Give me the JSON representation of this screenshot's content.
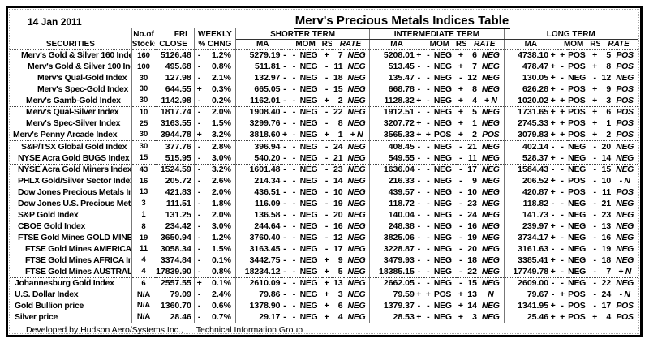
{
  "meta": {
    "date": "14 Jan 2011",
    "title": "Merv's Precious Metals Indices Table",
    "footer_left": "Developed by Hudson Aero/Systems Inc.,",
    "footer_right": "Technical Information Group"
  },
  "colors": {
    "text": "#000000",
    "background": "#ffffff",
    "border": "#000000"
  },
  "header": {
    "securities": "SECURITIES",
    "no_of": "No.of",
    "stocks": "Stocks",
    "fri": "FRI",
    "close": "CLOSE",
    "weekly": "WEEKLY",
    "pct_chng": "% CHNG",
    "shorter": "SHORTER TERM",
    "intermediate": "INTERMEDIATE TERM",
    "longterm": "LONG TERM",
    "ma": "MA",
    "mom": "MOM",
    "rs": "RS",
    "rate": "RATE"
  },
  "rows": [
    {
      "name": "Merv's Gold & Silver 160 Index",
      "indent": 10,
      "stocks": "160",
      "close": "5126.48",
      "wk_sign": "-",
      "wk": "1.2%",
      "divider": false,
      "st": {
        "ma": "5279.19",
        "ma_sign": "-",
        "mom_sign": "-",
        "mom": "NEG",
        "rs_sign": "+",
        "rs": "7",
        "rate": "NEG"
      },
      "it": {
        "ma": "5208.01",
        "ma_sign": "+",
        "mom_sign": "-",
        "mom": "NEG",
        "rs_sign": "+",
        "rs": "6",
        "rate": "NEG"
      },
      "lt": {
        "ma": "4738.10",
        "ma_sign": "+",
        "mom_sign": "+",
        "mom": "POS",
        "rs_sign": "+",
        "rs": "5",
        "rate": "POS"
      }
    },
    {
      "name": "Merv's Gold & Silver 100 Index",
      "indent": 18,
      "stocks": "100",
      "close": "495.68",
      "wk_sign": "-",
      "wk": "0.8%",
      "divider": false,
      "st": {
        "ma": "511.81",
        "ma_sign": "-",
        "mom_sign": "-",
        "mom": "NEG",
        "rs_sign": "-",
        "rs": "11",
        "rate": "NEG"
      },
      "it": {
        "ma": "513.45",
        "ma_sign": "-",
        "mom_sign": "-",
        "mom": "NEG",
        "rs_sign": "+",
        "rs": "7",
        "rate": "NEG"
      },
      "lt": {
        "ma": "478.47",
        "ma_sign": "+",
        "mom_sign": "-",
        "mom": "POS",
        "rs_sign": "+",
        "rs": "8",
        "rate": "POS"
      }
    },
    {
      "name": "Merv's Qual-Gold Index",
      "indent": 30,
      "stocks": "30",
      "close": "127.98",
      "wk_sign": "-",
      "wk": "2.1%",
      "divider": false,
      "st": {
        "ma": "132.97",
        "ma_sign": "-",
        "mom_sign": "-",
        "mom": "NEG",
        "rs_sign": "-",
        "rs": "18",
        "rate": "NEG"
      },
      "it": {
        "ma": "135.47",
        "ma_sign": "-",
        "mom_sign": "-",
        "mom": "NEG",
        "rs_sign": "-",
        "rs": "12",
        "rate": "NEG"
      },
      "lt": {
        "ma": "130.05",
        "ma_sign": "+",
        "mom_sign": "-",
        "mom": "NEG",
        "rs_sign": "-",
        "rs": "12",
        "rate": "NEG"
      }
    },
    {
      "name": "Merv's Spec-Gold Index",
      "indent": 30,
      "stocks": "30",
      "close": "644.55",
      "wk_sign": "+",
      "wk": "0.3%",
      "divider": false,
      "st": {
        "ma": "665.05",
        "ma_sign": "-",
        "mom_sign": "-",
        "mom": "NEG",
        "rs_sign": "-",
        "rs": "15",
        "rate": "NEG"
      },
      "it": {
        "ma": "668.78",
        "ma_sign": "-",
        "mom_sign": "-",
        "mom": "NEG",
        "rs_sign": "+",
        "rs": "8",
        "rate": "NEG"
      },
      "lt": {
        "ma": "626.28",
        "ma_sign": "+",
        "mom_sign": "-",
        "mom": "POS",
        "rs_sign": "+",
        "rs": "9",
        "rate": "POS"
      }
    },
    {
      "name": "Merv's Gamb-Gold Index",
      "indent": 16,
      "stocks": "30",
      "close": "1142.98",
      "wk_sign": "-",
      "wk": "0.2%",
      "divider": true,
      "st": {
        "ma": "1162.01",
        "ma_sign": "-",
        "mom_sign": "-",
        "mom": "NEG",
        "rs_sign": "+",
        "rs": "2",
        "rate": "NEG"
      },
      "it": {
        "ma": "1128.32",
        "ma_sign": "+",
        "mom_sign": "-",
        "mom": "NEG",
        "rs_sign": "+",
        "rs": "4",
        "rate": "+ N"
      },
      "lt": {
        "ma": "1020.02",
        "ma_sign": "+",
        "mom_sign": "+",
        "mom": "POS",
        "rs_sign": "+",
        "rs": "3",
        "rate": "POS"
      }
    },
    {
      "name": "Merv's Qual-Silver Index",
      "indent": 16,
      "stocks": "10",
      "close": "1817.74",
      "wk_sign": "-",
      "wk": "2.0%",
      "divider": false,
      "st": {
        "ma": "1908.40",
        "ma_sign": "-",
        "mom_sign": "-",
        "mom": "NEG",
        "rs_sign": "-",
        "rs": "22",
        "rate": "NEG"
      },
      "it": {
        "ma": "1912.51",
        "ma_sign": "-",
        "mom_sign": "-",
        "mom": "NEG",
        "rs_sign": "+",
        "rs": "5",
        "rate": "NEG"
      },
      "lt": {
        "ma": "1731.65",
        "ma_sign": "+",
        "mom_sign": "+",
        "mom": "POS",
        "rs_sign": "+",
        "rs": "6",
        "rate": "POS"
      }
    },
    {
      "name": "Merv's Spec-Silver Index",
      "indent": 16,
      "stocks": "25",
      "close": "3163.55",
      "wk_sign": "-",
      "wk": "1.5%",
      "divider": false,
      "st": {
        "ma": "3299.76",
        "ma_sign": "-",
        "mom_sign": "-",
        "mom": "NEG",
        "rs_sign": "-",
        "rs": "8",
        "rate": "NEG"
      },
      "it": {
        "ma": "3207.72",
        "ma_sign": "+",
        "mom_sign": "-",
        "mom": "NEG",
        "rs_sign": "+",
        "rs": "1",
        "rate": "NEG"
      },
      "lt": {
        "ma": "2745.33",
        "ma_sign": "+",
        "mom_sign": "+",
        "mom": "POS",
        "rs_sign": "+",
        "rs": "1",
        "rate": "POS"
      }
    },
    {
      "name": "Merv's Penny Arcade Index",
      "indent": 0,
      "stocks": "30",
      "close": "3944.78",
      "wk_sign": "+",
      "wk": "3.2%",
      "divider": true,
      "st": {
        "ma": "3818.60",
        "ma_sign": "+",
        "mom_sign": "-",
        "mom": "NEG",
        "rs_sign": "+",
        "rs": "1",
        "rate": "+ N"
      },
      "it": {
        "ma": "3565.33",
        "ma_sign": "+",
        "mom_sign": "+",
        "mom": "POS",
        "rs_sign": "+",
        "rs": "2",
        "rate": "POS"
      },
      "lt": {
        "ma": "3079.83",
        "ma_sign": "+",
        "mom_sign": "+",
        "mom": "POS",
        "rs_sign": "+",
        "rs": "2",
        "rate": "POS"
      }
    },
    {
      "name": "S&P/TSX Global Gold Index",
      "indent": 10,
      "stocks": "30",
      "close": "377.76",
      "wk_sign": "-",
      "wk": "2.8%",
      "divider": false,
      "st": {
        "ma": "396.94",
        "ma_sign": "-",
        "mom_sign": "-",
        "mom": "NEG",
        "rs_sign": "-",
        "rs": "24",
        "rate": "NEG"
      },
      "it": {
        "ma": "408.45",
        "ma_sign": "-",
        "mom_sign": "-",
        "mom": "NEG",
        "rs_sign": "-",
        "rs": "21",
        "rate": "NEG"
      },
      "lt": {
        "ma": "402.14",
        "ma_sign": "-",
        "mom_sign": "-",
        "mom": "NEG",
        "rs_sign": "-",
        "rs": "20",
        "rate": "NEG"
      }
    },
    {
      "name": "NYSE Acra Gold BUGS Index",
      "indent": 6,
      "stocks": "15",
      "close": "515.95",
      "wk_sign": "-",
      "wk": "3.0%",
      "divider": true,
      "st": {
        "ma": "540.20",
        "ma_sign": "-",
        "mom_sign": "-",
        "mom": "NEG",
        "rs_sign": "-",
        "rs": "21",
        "rate": "NEG"
      },
      "it": {
        "ma": "549.55",
        "ma_sign": "-",
        "mom_sign": "-",
        "mom": "NEG",
        "rs_sign": "-",
        "rs": "11",
        "rate": "NEG"
      },
      "lt": {
        "ma": "528.37",
        "ma_sign": "+",
        "mom_sign": "-",
        "mom": "NEG",
        "rs_sign": "-",
        "rs": "14",
        "rate": "NEG"
      }
    },
    {
      "name": "NYSE Acra Gold Miners Index",
      "indent": 6,
      "stocks": "43",
      "close": "1524.59",
      "wk_sign": "-",
      "wk": "3.2%",
      "divider": false,
      "st": {
        "ma": "1601.48",
        "ma_sign": "-",
        "mom_sign": "-",
        "mom": "NEG",
        "rs_sign": "-",
        "rs": "23",
        "rate": "NEG"
      },
      "it": {
        "ma": "1636.04",
        "ma_sign": "-",
        "mom_sign": "-",
        "mom": "NEG",
        "rs_sign": "-",
        "rs": "17",
        "rate": "NEG"
      },
      "lt": {
        "ma": "1584.43",
        "ma_sign": "-",
        "mom_sign": "-",
        "mom": "NEG",
        "rs_sign": "-",
        "rs": "15",
        "rate": "NEG"
      }
    },
    {
      "name": "PHLX Gold/Silver Sector Index",
      "indent": 6,
      "stocks": "16",
      "close": "205.72",
      "wk_sign": "-",
      "wk": "2.6%",
      "divider": false,
      "st": {
        "ma": "214.34",
        "ma_sign": "-",
        "mom_sign": "-",
        "mom": "NEG",
        "rs_sign": "-",
        "rs": "14",
        "rate": "NEG"
      },
      "it": {
        "ma": "216.33",
        "ma_sign": "-",
        "mom_sign": "-",
        "mom": "NEG",
        "rs_sign": "-",
        "rs": "9",
        "rate": "NEG"
      },
      "lt": {
        "ma": "206.52",
        "ma_sign": "+",
        "mom_sign": "-",
        "mom": "POS",
        "rs_sign": "-",
        "rs": "10",
        "rate": "- N"
      }
    },
    {
      "name": "Dow Jones Precious Metals Inde",
      "indent": 6,
      "stocks": "13",
      "close": "421.83",
      "wk_sign": "-",
      "wk": "2.0%",
      "divider": false,
      "st": {
        "ma": "436.51",
        "ma_sign": "-",
        "mom_sign": "-",
        "mom": "NEG",
        "rs_sign": "-",
        "rs": "10",
        "rate": "NEG"
      },
      "it": {
        "ma": "439.57",
        "ma_sign": "-",
        "mom_sign": "-",
        "mom": "NEG",
        "rs_sign": "-",
        "rs": "10",
        "rate": "NEG"
      },
      "lt": {
        "ma": "420.87",
        "ma_sign": "+",
        "mom_sign": "-",
        "mom": "POS",
        "rs_sign": "-",
        "rs": "11",
        "rate": "POS"
      }
    },
    {
      "name": "Dow Jones U.S. Precious Metals",
      "indent": 6,
      "stocks": "3",
      "close": "111.51",
      "wk_sign": "-",
      "wk": "1.8%",
      "divider": false,
      "st": {
        "ma": "116.09",
        "ma_sign": "-",
        "mom_sign": "-",
        "mom": "NEG",
        "rs_sign": "-",
        "rs": "19",
        "rate": "NEG"
      },
      "it": {
        "ma": "118.72",
        "ma_sign": "-",
        "mom_sign": "-",
        "mom": "NEG",
        "rs_sign": "-",
        "rs": "23",
        "rate": "NEG"
      },
      "lt": {
        "ma": "118.82",
        "ma_sign": "-",
        "mom_sign": "-",
        "mom": "NEG",
        "rs_sign": "-",
        "rs": "21",
        "rate": "NEG"
      }
    },
    {
      "name": "S&P Gold Index",
      "indent": 6,
      "stocks": "1",
      "close": "131.25",
      "wk_sign": "-",
      "wk": "2.0%",
      "divider": true,
      "st": {
        "ma": "136.58",
        "ma_sign": "-",
        "mom_sign": "-",
        "mom": "NEG",
        "rs_sign": "-",
        "rs": "20",
        "rate": "NEG"
      },
      "it": {
        "ma": "140.04",
        "ma_sign": "-",
        "mom_sign": "-",
        "mom": "NEG",
        "rs_sign": "-",
        "rs": "24",
        "rate": "NEG"
      },
      "lt": {
        "ma": "141.73",
        "ma_sign": "-",
        "mom_sign": "-",
        "mom": "NEG",
        "rs_sign": "-",
        "rs": "23",
        "rate": "NEG"
      }
    },
    {
      "name": "CBOE Gold Index",
      "indent": 6,
      "stocks": "8",
      "close": "234.42",
      "wk_sign": "-",
      "wk": "3.0%",
      "divider": false,
      "st": {
        "ma": "244.64",
        "ma_sign": "-",
        "mom_sign": "-",
        "mom": "NEG",
        "rs_sign": "-",
        "rs": "16",
        "rate": "NEG"
      },
      "it": {
        "ma": "248.38",
        "ma_sign": "-",
        "mom_sign": "-",
        "mom": "NEG",
        "rs_sign": "-",
        "rs": "16",
        "rate": "NEG"
      },
      "lt": {
        "ma": "239.97",
        "ma_sign": "+",
        "mom_sign": "-",
        "mom": "NEG",
        "rs_sign": "-",
        "rs": "13",
        "rate": "NEG"
      }
    },
    {
      "name": "FTSE Gold Mines GOLD MINES In",
      "indent": 6,
      "stocks": "19",
      "close": "3650.94",
      "wk_sign": "-",
      "wk": "1.2%",
      "divider": false,
      "st": {
        "ma": "3760.40",
        "ma_sign": "-",
        "mom_sign": "-",
        "mom": "NEG",
        "rs_sign": "-",
        "rs": "12",
        "rate": "NEG"
      },
      "it": {
        "ma": "3825.06",
        "ma_sign": "-",
        "mom_sign": "-",
        "mom": "NEG",
        "rs_sign": "-",
        "rs": "19",
        "rate": "NEG"
      },
      "lt": {
        "ma": "3734.17",
        "ma_sign": "+",
        "mom_sign": "-",
        "mom": "NEG",
        "rs_sign": "-",
        "rs": "16",
        "rate": "NEG"
      }
    },
    {
      "name": "FTSE Gold Mines AMERICAS In",
      "indent": 15,
      "stocks": "11",
      "close": "3058.34",
      "wk_sign": "-",
      "wk": "1.5%",
      "divider": false,
      "st": {
        "ma": "3163.45",
        "ma_sign": "-",
        "mom_sign": "-",
        "mom": "NEG",
        "rs_sign": "-",
        "rs": "17",
        "rate": "NEG"
      },
      "it": {
        "ma": "3228.87",
        "ma_sign": "-",
        "mom_sign": "-",
        "mom": "NEG",
        "rs_sign": "-",
        "rs": "20",
        "rate": "NEG"
      },
      "lt": {
        "ma": "3161.63",
        "ma_sign": "-",
        "mom_sign": "-",
        "mom": "NEG",
        "rs_sign": "-",
        "rs": "19",
        "rate": "NEG"
      }
    },
    {
      "name": "FTSE Gold Mines AFRICA Inde",
      "indent": 15,
      "stocks": "4",
      "close": "3374.84",
      "wk_sign": "-",
      "wk": "0.1%",
      "divider": false,
      "st": {
        "ma": "3442.75",
        "ma_sign": "-",
        "mom_sign": "-",
        "mom": "NEG",
        "rs_sign": "+",
        "rs": "9",
        "rate": "NEG"
      },
      "it": {
        "ma": "3479.93",
        "ma_sign": "-",
        "mom_sign": "-",
        "mom": "NEG",
        "rs_sign": "-",
        "rs": "18",
        "rate": "NEG"
      },
      "lt": {
        "ma": "3385.41",
        "ma_sign": "+",
        "mom_sign": "-",
        "mom": "NEG",
        "rs_sign": "-",
        "rs": "18",
        "rate": "NEG"
      }
    },
    {
      "name": "FTSE Gold Mines AUSTRALASI",
      "indent": 15,
      "stocks": "4",
      "close": "17839.90",
      "wk_sign": "-",
      "wk": "0.8%",
      "divider": true,
      "st": {
        "ma": "18234.12",
        "ma_sign": "-",
        "mom_sign": "-",
        "mom": "NEG",
        "rs_sign": "+",
        "rs": "5",
        "rate": "NEG"
      },
      "it": {
        "ma": "18385.15",
        "ma_sign": "-",
        "mom_sign": "-",
        "mom": "NEG",
        "rs_sign": "-",
        "rs": "22",
        "rate": "NEG"
      },
      "lt": {
        "ma": "17749.78",
        "ma_sign": "+",
        "mom_sign": "-",
        "mom": "NEG",
        "rs_sign": "-",
        "rs": "7",
        "rate": "+ N"
      }
    },
    {
      "name": "Johannesburg Gold Index",
      "indent": 2,
      "stocks": "6",
      "close": "2557.55",
      "wk_sign": "+",
      "wk": "0.1%",
      "divider": false,
      "st": {
        "ma": "2610.09",
        "ma_sign": "-",
        "mom_sign": "-",
        "mom": "NEG",
        "rs_sign": "+",
        "rs": "13",
        "rate": "NEG"
      },
      "it": {
        "ma": "2662.05",
        "ma_sign": "-",
        "mom_sign": "-",
        "mom": "NEG",
        "rs_sign": "-",
        "rs": "15",
        "rate": "NEG"
      },
      "lt": {
        "ma": "2609.00",
        "ma_sign": "-",
        "mom_sign": "-",
        "mom": "NEG",
        "rs_sign": "-",
        "rs": "22",
        "rate": "NEG"
      }
    },
    {
      "name": "U.S. Dollar Index",
      "indent": 2,
      "stocks": "N/A",
      "close": "79.09",
      "wk_sign": "-",
      "wk": "2.4%",
      "divider": false,
      "st": {
        "ma": "79.86",
        "ma_sign": "-",
        "mom_sign": "-",
        "mom": "NEG",
        "rs_sign": "+",
        "rs": "3",
        "rate": "NEG"
      },
      "it": {
        "ma": "79.59",
        "ma_sign": "+",
        "mom_sign": "+",
        "mom": "POS",
        "rs_sign": "+",
        "rs": "13",
        "rate": "N"
      },
      "lt": {
        "ma": "79.67",
        "ma_sign": "-",
        "mom_sign": "+",
        "mom": "POS",
        "rs_sign": "-",
        "rs": "24",
        "rate": "- N"
      }
    },
    {
      "name": "Gold Bullion price",
      "indent": 2,
      "stocks": "N/A",
      "close": "1360.70",
      "wk_sign": "-",
      "wk": "0.6%",
      "divider": false,
      "st": {
        "ma": "1378.90",
        "ma_sign": "-",
        "mom_sign": "-",
        "mom": "NEG",
        "rs_sign": "+",
        "rs": "6",
        "rate": "NEG"
      },
      "it": {
        "ma": "1379.37",
        "ma_sign": "-",
        "mom_sign": "-",
        "mom": "NEG",
        "rs_sign": "+",
        "rs": "14",
        "rate": "NEG"
      },
      "lt": {
        "ma": "1341.95",
        "ma_sign": "+",
        "mom_sign": "-",
        "mom": "POS",
        "rs_sign": "-",
        "rs": "17",
        "rate": "POS"
      }
    },
    {
      "name": "Silver price",
      "indent": 2,
      "stocks": "N/A",
      "close": "28.46",
      "wk_sign": "-",
      "wk": "0.7%",
      "divider": false,
      "st": {
        "ma": "29.17",
        "ma_sign": "-",
        "mom_sign": "-",
        "mom": "NEG",
        "rs_sign": "+",
        "rs": "4",
        "rate": "NEG"
      },
      "it": {
        "ma": "28.53",
        "ma_sign": "+",
        "mom_sign": "-",
        "mom": "NEG",
        "rs_sign": "+",
        "rs": "3",
        "rate": "NEG"
      },
      "lt": {
        "ma": "25.46",
        "ma_sign": "+",
        "mom_sign": "+",
        "mom": "POS",
        "rs_sign": "+",
        "rs": "4",
        "rate": "POS"
      }
    }
  ]
}
